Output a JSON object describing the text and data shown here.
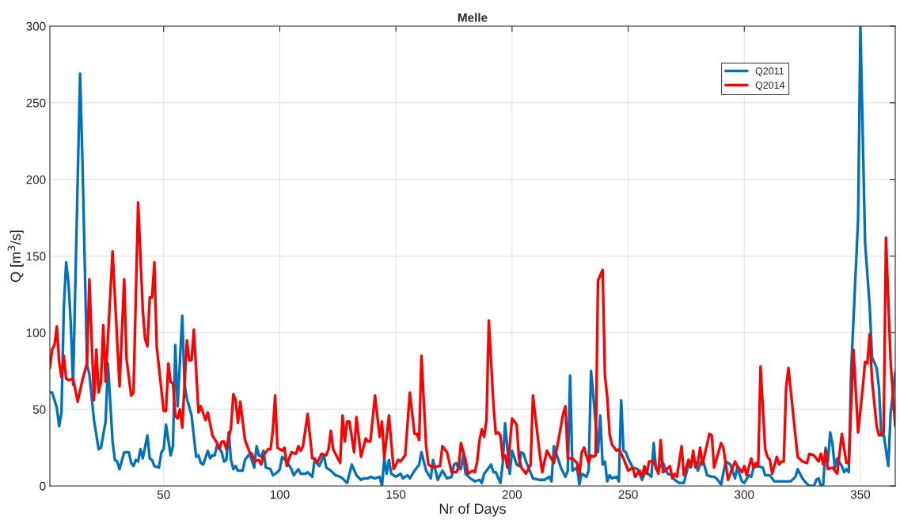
{
  "chart_data": {
    "type": "line",
    "title": "Melle",
    "xlabel": "Nr of Days",
    "ylabel": "Q [m$^{3}$/s]",
    "xlim": [
      1,
      365
    ],
    "xticks": [
      50,
      100,
      150,
      200,
      250,
      300,
      350
    ],
    "ylim": [
      0,
      300
    ],
    "yticks": [
      0,
      50,
      100,
      150,
      200,
      250,
      300
    ],
    "grid": true,
    "legend": "top right",
    "line_style": "solid",
    "marker": "none",
    "series": [
      {
        "name": "Q2011",
        "color": "#0072bd",
        "x": [
          1,
          2,
          4,
          5,
          6,
          7,
          8,
          9,
          10,
          11,
          14,
          15,
          17,
          18,
          20,
          22,
          23,
          25,
          26,
          28,
          29,
          30,
          31,
          33,
          35,
          36,
          37,
          38,
          39,
          40,
          41,
          43,
          44,
          45,
          46,
          48,
          49,
          50,
          51,
          53,
          54,
          55,
          56,
          58,
          59,
          60,
          62,
          64,
          65,
          66,
          67,
          69,
          70,
          71,
          72,
          73,
          75,
          76,
          77,
          78,
          79,
          80,
          81,
          82,
          84,
          85,
          87,
          89,
          90,
          91,
          92,
          93,
          94,
          96,
          97,
          99,
          100,
          101,
          103,
          105,
          106,
          108,
          109,
          111,
          112,
          114,
          115,
          117,
          119,
          120,
          122,
          124,
          126,
          127,
          129,
          131,
          133,
          135,
          136,
          138,
          139,
          141,
          143,
          144,
          145,
          146,
          147,
          148,
          150,
          152,
          153,
          155,
          156,
          158,
          160,
          161,
          163,
          165,
          166,
          168,
          170,
          172,
          174,
          175,
          176,
          177,
          178,
          179,
          180,
          182,
          184,
          186,
          187,
          188,
          191,
          192,
          193,
          195,
          196,
          197,
          199,
          200,
          202,
          203,
          204,
          205,
          206,
          209,
          212,
          214,
          216,
          217,
          218,
          220,
          221,
          223,
          224,
          225,
          226,
          228,
          229,
          230,
          232,
          233,
          234,
          235,
          237,
          238,
          239,
          240,
          241,
          242,
          243,
          245,
          246,
          247,
          248,
          249,
          250,
          252,
          254,
          256,
          257,
          258,
          260,
          261,
          262,
          263,
          265,
          267,
          269,
          270,
          272,
          274,
          276,
          277,
          278,
          280,
          282,
          284,
          286,
          287,
          288,
          290,
          292,
          294,
          296,
          297,
          299,
          300,
          302,
          303,
          304,
          306,
          308,
          309,
          311,
          313,
          320,
          322,
          323,
          325,
          326,
          328,
          330,
          331,
          332,
          333,
          334,
          335,
          336,
          337,
          338,
          339,
          340,
          342,
          343,
          344,
          345,
          346,
          349,
          350,
          352,
          354,
          355,
          357,
          358,
          359,
          360,
          362,
          363,
          365
        ],
        "values": [
          61,
          61,
          51,
          39,
          48,
          116,
          146,
          133,
          106,
          66,
          269,
          214,
          79,
          73,
          43,
          24,
          25,
          42,
          80,
          29,
          17,
          16,
          11,
          22,
          22,
          15,
          13,
          17,
          16,
          24,
          18,
          33,
          18,
          17,
          13,
          12,
          22,
          24,
          40,
          20,
          26,
          92,
          52,
          111,
          66,
          57,
          46,
          19,
          20,
          15,
          14,
          23,
          18,
          20,
          20,
          27,
          22,
          16,
          17,
          35,
          17,
          11,
          13,
          10,
          10,
          17,
          21,
          12,
          26,
          20,
          19,
          23,
          12,
          11,
          7,
          9,
          11,
          19,
          16,
          11,
          7,
          11,
          8,
          8,
          9,
          6,
          17,
          13,
          20,
          12,
          10,
          7,
          6,
          5,
          2,
          14,
          7,
          4,
          5,
          5,
          6,
          5,
          6,
          0,
          18,
          8,
          17,
          8,
          6,
          8,
          5,
          7,
          5,
          10,
          14,
          22,
          10,
          5,
          17,
          4,
          10,
          5,
          6,
          14,
          15,
          11,
          11,
          20,
          8,
          5,
          3,
          4,
          2,
          8,
          14,
          9,
          9,
          2,
          15,
          41,
          8,
          23,
          14,
          13,
          22,
          21,
          16,
          5,
          4,
          4,
          6,
          3,
          26,
          17,
          12,
          6,
          10,
          72,
          10,
          12,
          1,
          8,
          6,
          10,
          75,
          59,
          22,
          46,
          14,
          16,
          3,
          7,
          5,
          6,
          3,
          56,
          23,
          22,
          18,
          12,
          11,
          4,
          8,
          9,
          6,
          28,
          11,
          11,
          15,
          8,
          7,
          4,
          2,
          2,
          14,
          12,
          20,
          10,
          18,
          7,
          6,
          6,
          5,
          1,
          16,
          14,
          5,
          12,
          3,
          2,
          7,
          6,
          12,
          13,
          12,
          7,
          7,
          3,
          3,
          6,
          11,
          5,
          3,
          0,
          0,
          4,
          5,
          0,
          1,
          25,
          16,
          35,
          27,
          12,
          18,
          13,
          9,
          11,
          9,
          75,
          174,
          300,
          159,
          117,
          84,
          77,
          64,
          33,
          34,
          13,
          47,
          74
        ]
      },
      {
        "name": "Q2014",
        "color": "#ff0000",
        "x": [
          1,
          2,
          3,
          4,
          5,
          6,
          7,
          8,
          9,
          11,
          13,
          15,
          17,
          18,
          20,
          21,
          22,
          23,
          24,
          25,
          28,
          31,
          33,
          34,
          36,
          37,
          39,
          41,
          42,
          43,
          44,
          45,
          46,
          47,
          48,
          50,
          51,
          52,
          53,
          54,
          55,
          56,
          57,
          58,
          60,
          61,
          62,
          63,
          65,
          66,
          68,
          69,
          71,
          73,
          74,
          75,
          76,
          77,
          79,
          80,
          81,
          82,
          83,
          85,
          87,
          88,
          89,
          91,
          92,
          93,
          95,
          96,
          97,
          98,
          99,
          101,
          102,
          103,
          104,
          105,
          107,
          108,
          109,
          110,
          112,
          114,
          115,
          116,
          118,
          120,
          121,
          122,
          123,
          125,
          126,
          127,
          128,
          129,
          130,
          132,
          133,
          135,
          137,
          138,
          139,
          141,
          143,
          144,
          145,
          147,
          149,
          151,
          152,
          154,
          156,
          158,
          159,
          160,
          161,
          163,
          164,
          166,
          168,
          169,
          170,
          172,
          174,
          176,
          177,
          178,
          180,
          181,
          183,
          184,
          185,
          186,
          187,
          188,
          189,
          190,
          192,
          193,
          194,
          195,
          196,
          197,
          198,
          199,
          200,
          202,
          203,
          204,
          206,
          208,
          209,
          212,
          213,
          215,
          218,
          220,
          222,
          223,
          224,
          226,
          228,
          229,
          230,
          231,
          233,
          234,
          235,
          236,
          237,
          239,
          240,
          241,
          242,
          243,
          245,
          246,
          248,
          249,
          250,
          252,
          253,
          255,
          256,
          257,
          258,
          259,
          261,
          263,
          264,
          265,
          266,
          268,
          269,
          270,
          271,
          273,
          274,
          276,
          277,
          278,
          279,
          280,
          281,
          282,
          285,
          286,
          287,
          290,
          291,
          293,
          296,
          297,
          299,
          300,
          301,
          303,
          304,
          305,
          306,
          307,
          309,
          310,
          311,
          312,
          314,
          315,
          316,
          317,
          318,
          319,
          322,
          323,
          325,
          327,
          328,
          330,
          332,
          333,
          334,
          335,
          336,
          338,
          340,
          342,
          344,
          345,
          347,
          349,
          351,
          352,
          353,
          354,
          355,
          357,
          358,
          360,
          361,
          363,
          365
        ],
        "values": [
          77,
          89,
          92,
          104,
          81,
          71,
          85,
          70,
          69,
          70,
          55,
          69,
          80,
          135,
          56,
          89,
          61,
          68,
          105,
          68,
          153,
          65,
          135,
          83,
          59,
          61,
          185,
          115,
          96,
          91,
          123,
          123,
          146,
          91,
          77,
          49,
          49,
          80,
          68,
          67,
          46,
          44,
          50,
          38,
          95,
          82,
          82,
          102,
          48,
          52,
          43,
          48,
          33,
          28,
          24,
          29,
          29,
          24,
          38,
          60,
          56,
          41,
          55,
          30,
          22,
          21,
          16,
          17,
          14,
          20,
          24,
          24,
          36,
          59,
          25,
          23,
          25,
          13,
          18,
          22,
          21,
          26,
          23,
          26,
          47,
          18,
          18,
          15,
          21,
          20,
          24,
          36,
          24,
          18,
          15,
          46,
          29,
          42,
          42,
          22,
          45,
          19,
          31,
          29,
          29,
          59,
          32,
          42,
          18,
          46,
          11,
          17,
          16,
          20,
          61,
          34,
          34,
          30,
          85,
          26,
          14,
          12,
          13,
          13,
          26,
          22,
          9,
          9,
          12,
          28,
          17,
          8,
          10,
          9,
          16,
          30,
          37,
          32,
          43,
          108,
          53,
          34,
          35,
          33,
          18,
          20,
          12,
          26,
          44,
          40,
          18,
          12,
          8,
          14,
          59,
          20,
          9,
          23,
          15,
          30,
          47,
          52,
          18,
          18,
          15,
          7,
          22,
          25,
          15,
          20,
          19,
          20,
          134,
          141,
          72,
          58,
          34,
          27,
          23,
          24,
          18,
          14,
          10,
          12,
          6,
          10,
          6,
          13,
          8,
          16,
          16,
          8,
          30,
          9,
          10,
          13,
          5,
          8,
          6,
          26,
          7,
          17,
          13,
          23,
          12,
          15,
          25,
          14,
          34,
          33,
          12,
          28,
          25,
          4,
          16,
          13,
          9,
          13,
          7,
          18,
          12,
          15,
          13,
          78,
          24,
          19,
          17,
          8,
          19,
          14,
          16,
          16,
          64,
          77,
          33,
          19,
          16,
          15,
          21,
          20,
          16,
          21,
          14,
          23,
          11,
          12,
          8,
          34,
          15,
          15,
          89,
          35,
          64,
          81,
          80,
          99,
          69,
          39,
          33,
          35,
          162,
          81,
          39
        ]
      }
    ]
  }
}
